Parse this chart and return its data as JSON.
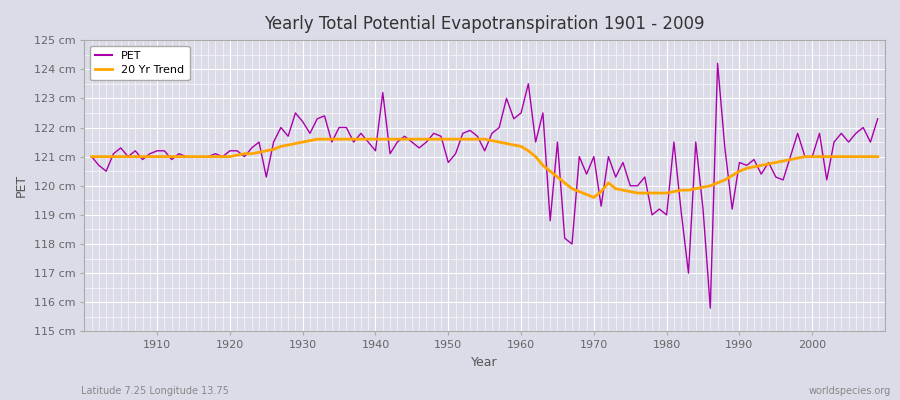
{
  "title": "Yearly Total Potential Evapotranspiration 1901 - 2009",
  "xlabel": "Year",
  "ylabel": "PET",
  "subtitle_left": "Latitude 7.25 Longitude 13.75",
  "subtitle_right": "worldspecies.org",
  "pet_color": "#aa00aa",
  "trend_color": "#ffa500",
  "bg_color": "#dcdce8",
  "ylim": [
    115,
    125
  ],
  "yticks": [
    115,
    116,
    117,
    118,
    119,
    120,
    121,
    122,
    123,
    124,
    125
  ],
  "years": [
    1901,
    1902,
    1903,
    1904,
    1905,
    1906,
    1907,
    1908,
    1909,
    1910,
    1911,
    1912,
    1913,
    1914,
    1915,
    1916,
    1917,
    1918,
    1919,
    1920,
    1921,
    1922,
    1923,
    1924,
    1925,
    1926,
    1927,
    1928,
    1929,
    1930,
    1931,
    1932,
    1933,
    1934,
    1935,
    1936,
    1937,
    1938,
    1939,
    1940,
    1941,
    1942,
    1943,
    1944,
    1945,
    1946,
    1947,
    1948,
    1949,
    1950,
    1951,
    1952,
    1953,
    1954,
    1955,
    1956,
    1957,
    1958,
    1959,
    1960,
    1961,
    1962,
    1963,
    1964,
    1965,
    1966,
    1967,
    1968,
    1969,
    1970,
    1971,
    1972,
    1973,
    1974,
    1975,
    1976,
    1977,
    1978,
    1979,
    1980,
    1981,
    1982,
    1983,
    1984,
    1985,
    1986,
    1987,
    1988,
    1989,
    1990,
    1991,
    1992,
    1993,
    1994,
    1995,
    1996,
    1997,
    1998,
    1999,
    2000,
    2001,
    2002,
    2003,
    2004,
    2005,
    2006,
    2007,
    2008,
    2009
  ],
  "pet_values": [
    121.0,
    120.7,
    120.5,
    121.1,
    121.3,
    121.0,
    121.2,
    120.9,
    121.1,
    121.2,
    121.2,
    120.9,
    121.1,
    121.0,
    121.0,
    121.0,
    121.0,
    121.1,
    121.0,
    121.2,
    121.2,
    121.0,
    121.3,
    121.5,
    120.3,
    121.5,
    122.0,
    121.7,
    122.5,
    122.2,
    121.8,
    122.3,
    122.4,
    121.5,
    122.0,
    122.0,
    121.5,
    121.8,
    121.5,
    121.2,
    123.2,
    121.1,
    121.5,
    121.7,
    121.5,
    121.3,
    121.5,
    121.8,
    121.7,
    120.8,
    121.1,
    121.8,
    121.9,
    121.7,
    121.2,
    121.8,
    122.0,
    123.0,
    122.3,
    122.5,
    123.5,
    121.5,
    122.5,
    118.8,
    121.5,
    118.2,
    118.0,
    121.0,
    120.4,
    121.0,
    119.3,
    121.0,
    120.3,
    120.8,
    120.0,
    120.0,
    120.3,
    119.0,
    119.2,
    119.0,
    121.5,
    119.1,
    117.0,
    121.5,
    119.2,
    115.8,
    124.2,
    121.3,
    119.2,
    120.8,
    120.7,
    120.9,
    120.4,
    120.8,
    120.3,
    120.2,
    121.0,
    121.8,
    121.0,
    121.0,
    121.8,
    120.2,
    121.5,
    121.8,
    121.5,
    121.8,
    122.0,
    121.5,
    122.3
  ],
  "trend_values": [
    121.0,
    121.0,
    121.0,
    121.0,
    121.0,
    121.0,
    121.0,
    121.0,
    121.0,
    121.0,
    121.0,
    121.0,
    121.0,
    121.0,
    121.0,
    121.0,
    121.0,
    121.0,
    121.0,
    121.0,
    121.05,
    121.1,
    121.1,
    121.15,
    121.2,
    121.25,
    121.35,
    121.4,
    121.45,
    121.5,
    121.55,
    121.6,
    121.6,
    121.6,
    121.6,
    121.6,
    121.6,
    121.6,
    121.6,
    121.6,
    121.6,
    121.6,
    121.6,
    121.6,
    121.6,
    121.6,
    121.6,
    121.6,
    121.6,
    121.6,
    121.6,
    121.6,
    121.6,
    121.6,
    121.6,
    121.55,
    121.5,
    121.45,
    121.4,
    121.35,
    121.2,
    121.0,
    120.7,
    120.5,
    120.3,
    120.1,
    119.9,
    119.8,
    119.7,
    119.6,
    119.8,
    120.1,
    119.9,
    119.85,
    119.8,
    119.75,
    119.75,
    119.75,
    119.75,
    119.75,
    119.8,
    119.85,
    119.85,
    119.9,
    119.95,
    120.0,
    120.1,
    120.2,
    120.35,
    120.5,
    120.6,
    120.65,
    120.7,
    120.75,
    120.8,
    120.85,
    120.9,
    120.95,
    121.0,
    121.0,
    121.0,
    121.0,
    121.0,
    121.0,
    121.0,
    121.0,
    121.0,
    121.0,
    121.0
  ]
}
